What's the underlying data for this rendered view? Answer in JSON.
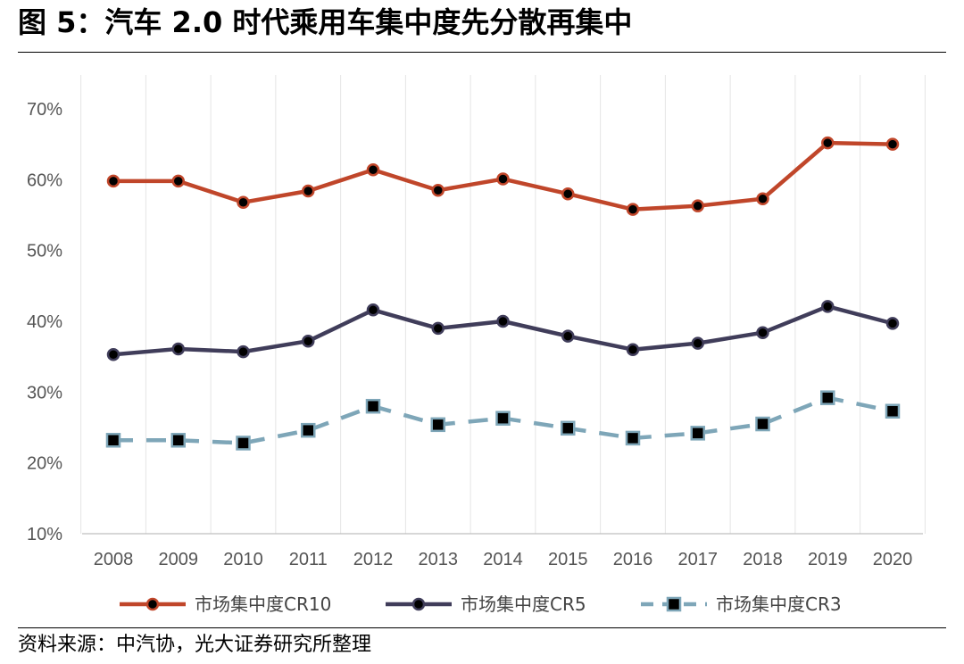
{
  "header": {
    "title": "图 5：汽车 2.0 时代乘用车集中度先分散再集中"
  },
  "footer": {
    "source": "资料来源：中汽协，光大证券研究所整理"
  },
  "chart_data": {
    "type": "line",
    "title": "图 5：汽车 2.0 时代乘用车集中度先分散再集中",
    "xlabel": "",
    "ylabel": "",
    "ylim": [
      10,
      70
    ],
    "yticks": [
      "10%",
      "20%",
      "30%",
      "40%",
      "50%",
      "60%",
      "70%"
    ],
    "ytick_values": [
      10,
      20,
      30,
      40,
      50,
      60,
      70
    ],
    "categories": [
      "2008",
      "2009",
      "2010",
      "2011",
      "2012",
      "2013",
      "2014",
      "2015",
      "2016",
      "2017",
      "2018",
      "2019",
      "2020"
    ],
    "legend_position": "bottom",
    "series": [
      {
        "name": "市场集中度CR10",
        "color": "#C0462A",
        "line_style": "solid",
        "marker": "circle",
        "values": [
          59.8,
          59.8,
          56.8,
          58.4,
          61.4,
          58.5,
          60.1,
          58.0,
          55.8,
          56.3,
          57.3,
          65.2,
          65.0
        ]
      },
      {
        "name": "市场集中度CR5",
        "color": "#403D5A",
        "line_style": "solid",
        "marker": "circle",
        "values": [
          35.3,
          36.1,
          35.7,
          37.2,
          41.6,
          39.0,
          40.0,
          37.9,
          36.0,
          36.9,
          38.4,
          42.1,
          39.7
        ]
      },
      {
        "name": "市场集中度CR3",
        "color": "#7EA6B8",
        "line_style": "dashed",
        "marker": "square",
        "values": [
          23.2,
          23.2,
          22.8,
          24.6,
          28.0,
          25.4,
          26.3,
          24.9,
          23.5,
          24.2,
          25.5,
          29.2,
          27.3
        ]
      }
    ]
  }
}
